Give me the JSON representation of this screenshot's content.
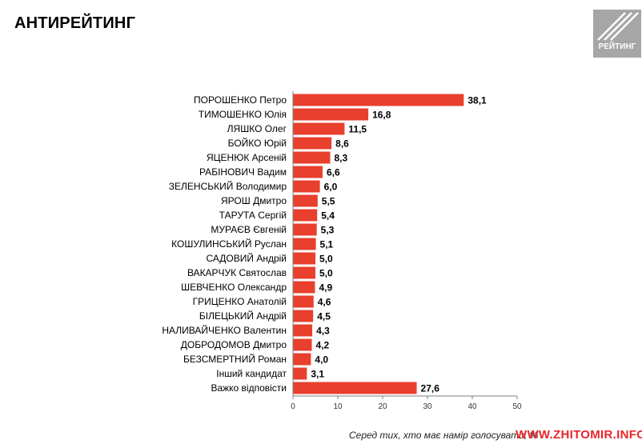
{
  "header": {
    "title": "АНТИРЕЙТИНГ"
  },
  "logo": {
    "text": "РЕЙТИНГ"
  },
  "footnote": "Серед тих, хто має намір голосувати, %",
  "watermark": "WWW.ZHITOMIR.INFO",
  "colors": {
    "bar": "#e8402c",
    "axis": "#7f7f7f",
    "logo": "#a6a6a6",
    "watermark": "#e8262b"
  },
  "chart_data": {
    "type": "bar",
    "orientation": "horizontal",
    "title": "",
    "xlabel": "",
    "ylabel": "",
    "xlim": [
      0,
      50
    ],
    "x_ticks": [
      0,
      10,
      20,
      30,
      40,
      50
    ],
    "grid": false,
    "categories": [
      "ПОРОШЕНКО Петро",
      "ТИМОШЕНКО Юлія",
      "ЛЯШКО Олег",
      "БОЙКО Юрій",
      "ЯЦЕНЮК Арсеній",
      "РАБІНОВИЧ Вадим",
      "ЗЕЛЕНСЬКИЙ Володимир",
      "ЯРОШ Дмитро",
      "ТАРУТА Сергій",
      "МУРАЄВ Євгеній",
      "КОШУЛИНСЬКИЙ Руслан",
      "САДОВИЙ Андрій",
      "ВАКАРЧУК Святослав",
      "ШЕВЧЕНКО Олександр",
      "ГРИЦЕНКО Анатолій",
      "БІЛЕЦЬКИЙ Андрій",
      "НАЛИВАЙЧЕНКО Валентин",
      "ДОБРОДОМОВ Дмитро",
      "БЕЗСМЕРТНИЙ Роман",
      "Інший кандидат",
      "Важко відповісти"
    ],
    "values": [
      38.1,
      16.8,
      11.5,
      8.6,
      8.3,
      6.6,
      6.0,
      5.5,
      5.4,
      5.3,
      5.1,
      5.0,
      5.0,
      4.9,
      4.6,
      4.5,
      4.3,
      4.2,
      4.0,
      3.1,
      27.6
    ],
    "value_labels": [
      "38,1",
      "16,8",
      "11,5",
      "8,6",
      "8,3",
      "6,6",
      "6,0",
      "5,5",
      "5,4",
      "5,3",
      "5,1",
      "5,0",
      "5,0",
      "4,9",
      "4,6",
      "4,5",
      "4,3",
      "4,2",
      "4,0",
      "3,1",
      "27,6"
    ]
  }
}
